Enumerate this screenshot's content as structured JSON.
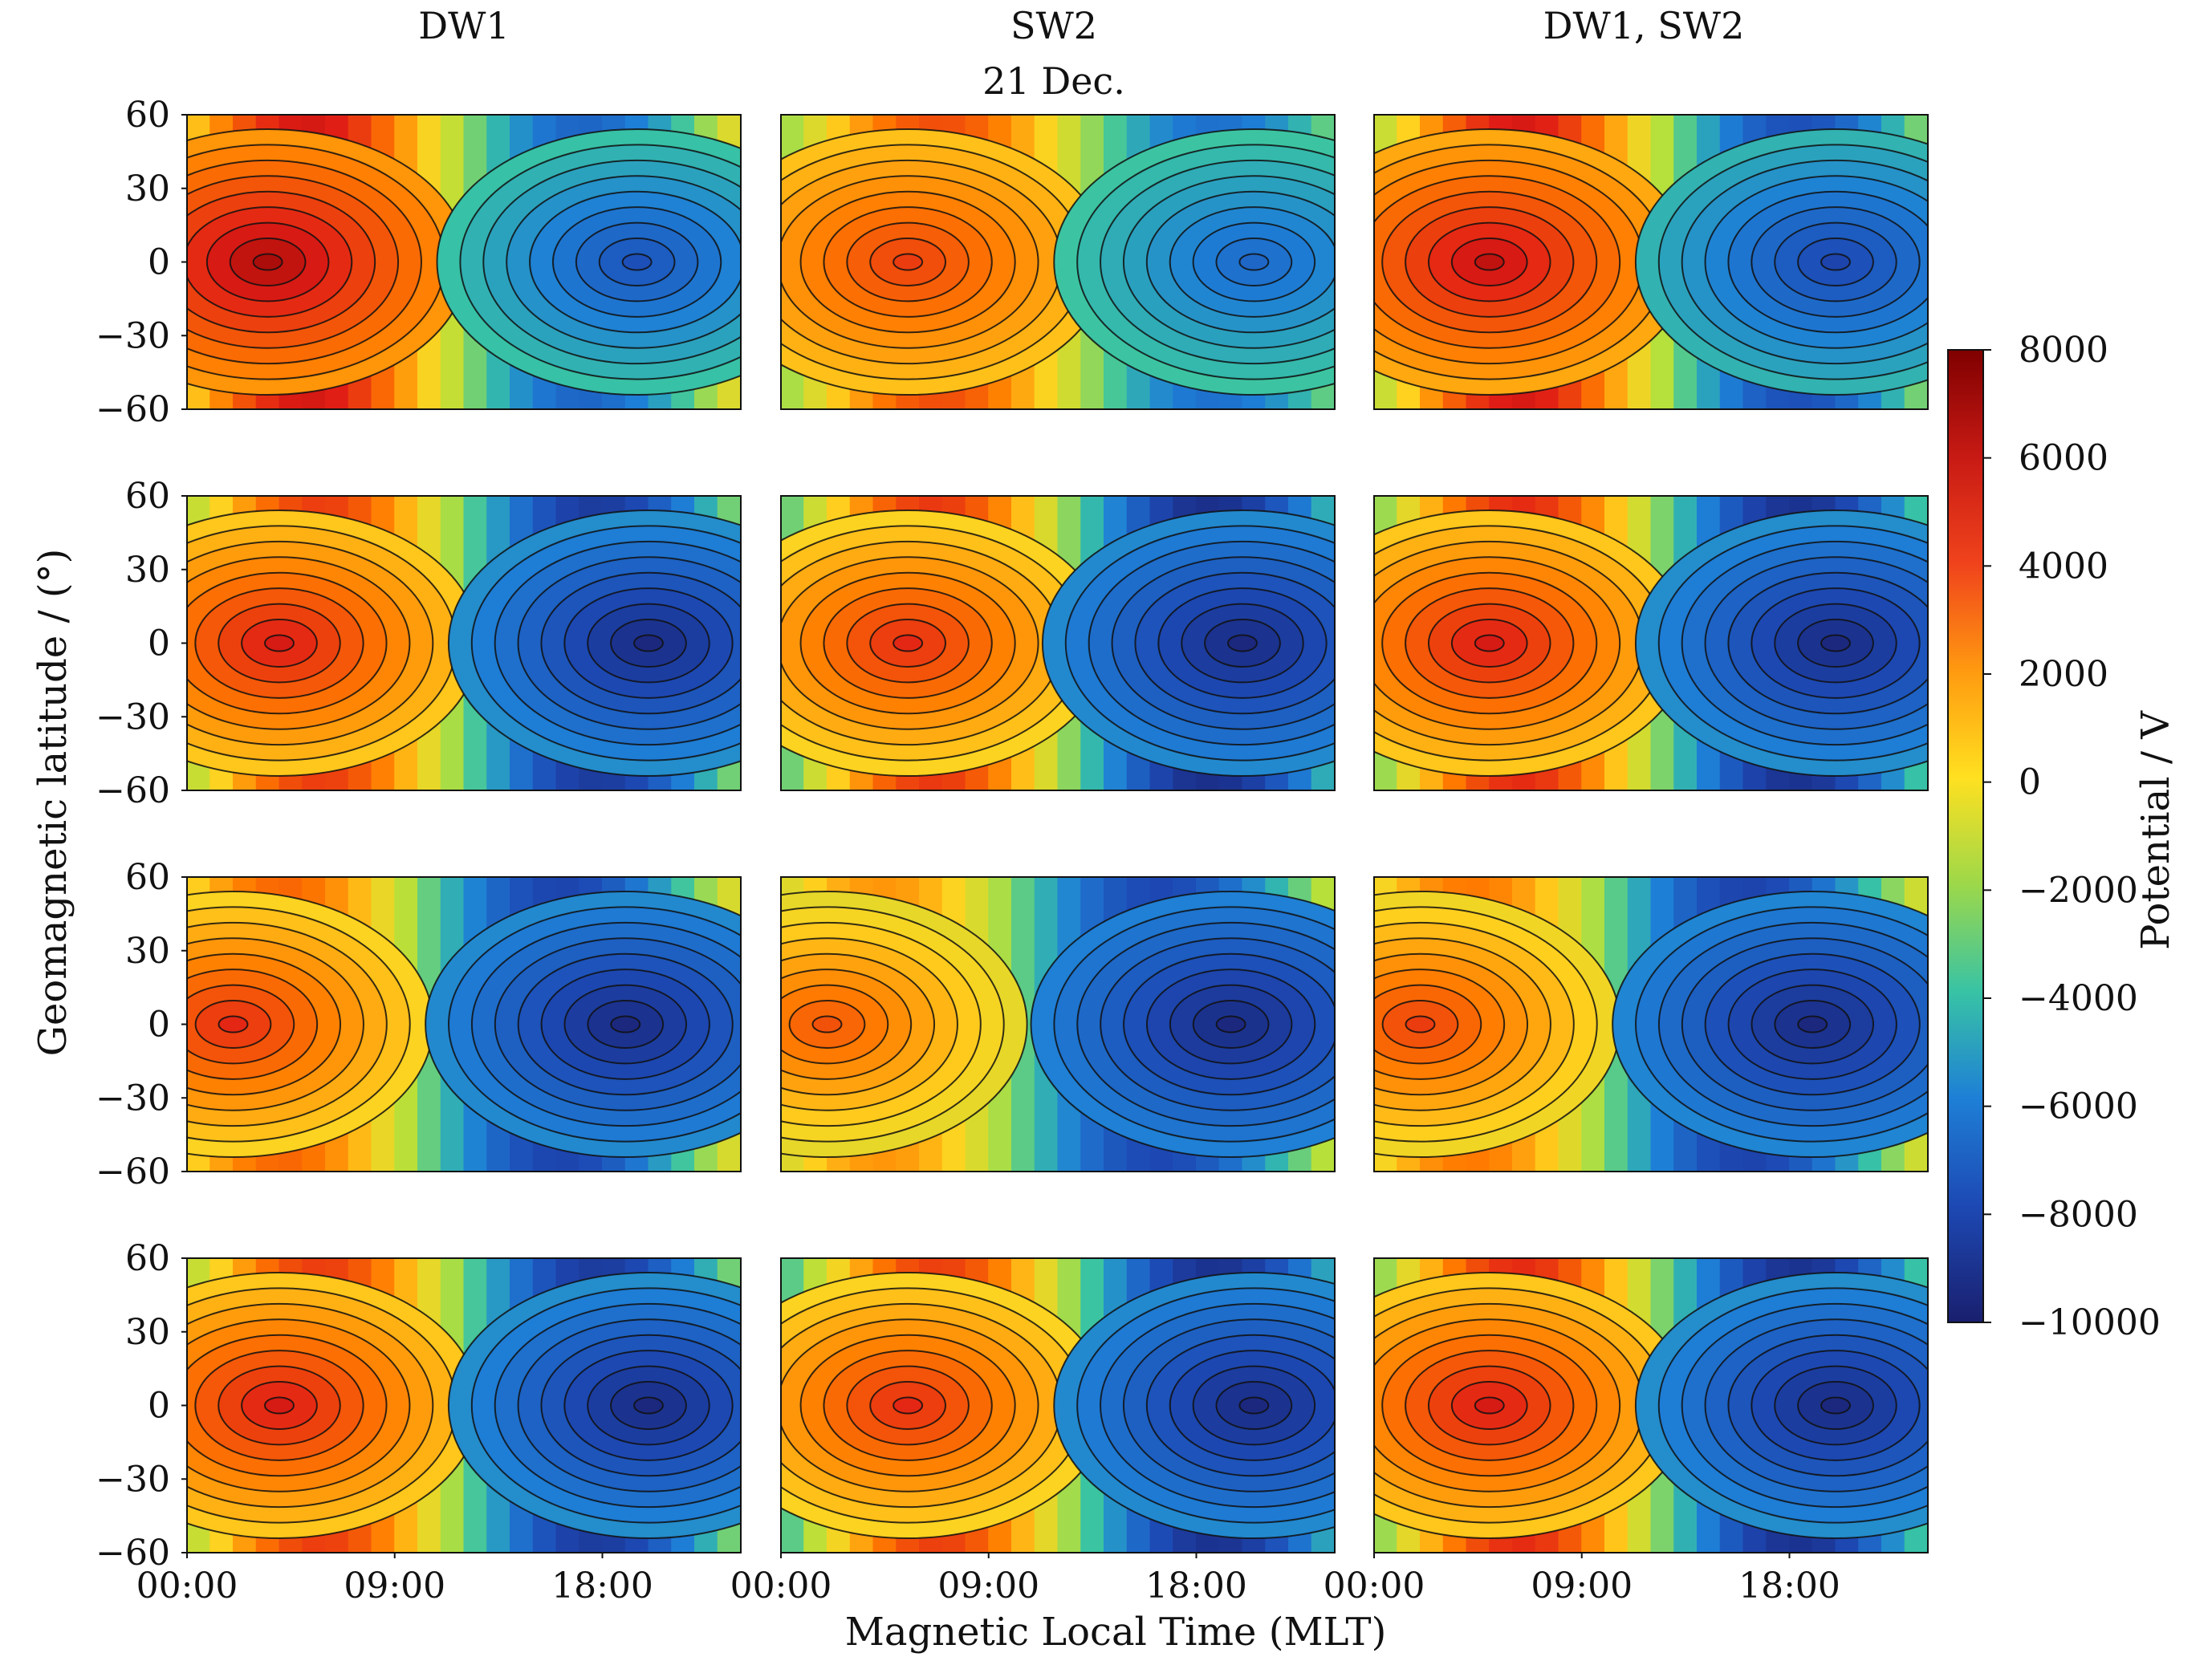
{
  "chart_data": {
    "type": "heatmap",
    "title": "21 Dec.",
    "xlabel": "Magnetic Local Time (MLT)",
    "ylabel": "Geomagnetic latitude / (°)",
    "columns": [
      "DW1",
      "SW2",
      "DW1, SW2"
    ],
    "rows": 4,
    "xlim": [
      0,
      24
    ],
    "x_ticks": [
      {
        "value": 0,
        "label": "00:00"
      },
      {
        "value": 9,
        "label": "09:00"
      },
      {
        "value": 18,
        "label": "18:00"
      }
    ],
    "ylim": [
      -60,
      60
    ],
    "y_ticks": [
      {
        "value": 60,
        "label": "60"
      },
      {
        "value": 30,
        "label": "30"
      },
      {
        "value": 0,
        "label": "0"
      },
      {
        "value": -30,
        "label": "−30"
      },
      {
        "value": -60,
        "label": "−60"
      }
    ],
    "colorbar": {
      "label": "Potential / V",
      "range": [
        -10000,
        8000
      ],
      "ticks": [
        {
          "value": 8000,
          "label": "8000"
        },
        {
          "value": 6000,
          "label": "6000"
        },
        {
          "value": 4000,
          "label": "4000"
        },
        {
          "value": 2000,
          "label": "2000"
        },
        {
          "value": 0,
          "label": "0"
        },
        {
          "value": -2000,
          "label": "−2000"
        },
        {
          "value": -4000,
          "label": "−4000"
        },
        {
          "value": -6000,
          "label": "−6000"
        },
        {
          "value": -8000,
          "label": "−8000"
        },
        {
          "value": -10000,
          "label": "−10000"
        }
      ],
      "colormap": [
        "#7f0000",
        "#e11d16",
        "#ff7a00",
        "#ffd21f",
        "#b8e03a",
        "#38c3a5",
        "#1e7fd6",
        "#1d49b4",
        "#1a1f6e"
      ]
    },
    "grid": false,
    "contour_color": "#111111",
    "panels": [
      {
        "row": 1,
        "col": "DW1",
        "max_mlt": 3.5,
        "min_mlt": 19.5,
        "max_value": 7000,
        "min_value": -7500
      },
      {
        "row": 1,
        "col": "SW2",
        "max_mlt": 5.5,
        "min_mlt": 20.5,
        "max_value": 5000,
        "min_value": -6500
      },
      {
        "row": 1,
        "col": "DW1, SW2",
        "max_mlt": 5.0,
        "min_mlt": 20.0,
        "max_value": 6500,
        "min_value": -8000
      },
      {
        "row": 2,
        "col": "DW1",
        "max_mlt": 4.0,
        "min_mlt": 20.0,
        "max_value": 6000,
        "min_value": -9500
      },
      {
        "row": 2,
        "col": "SW2",
        "max_mlt": 5.5,
        "min_mlt": 20.0,
        "max_value": 5500,
        "min_value": -9500
      },
      {
        "row": 2,
        "col": "DW1, SW2",
        "max_mlt": 5.0,
        "min_mlt": 20.0,
        "max_value": 6000,
        "min_value": -9500
      },
      {
        "row": 3,
        "col": "DW1",
        "max_mlt": 2.0,
        "min_mlt": 19.0,
        "max_value": 5500,
        "min_value": -9500
      },
      {
        "row": 3,
        "col": "SW2",
        "max_mlt": 2.0,
        "min_mlt": 19.5,
        "max_value": 4500,
        "min_value": -9500
      },
      {
        "row": 3,
        "col": "DW1, SW2",
        "max_mlt": 2.0,
        "min_mlt": 19.0,
        "max_value": 5000,
        "min_value": -9500
      },
      {
        "row": 4,
        "col": "DW1",
        "max_mlt": 4.0,
        "min_mlt": 20.0,
        "max_value": 6000,
        "min_value": -9500
      },
      {
        "row": 4,
        "col": "SW2",
        "max_mlt": 5.5,
        "min_mlt": 20.5,
        "max_value": 5500,
        "min_value": -9500
      },
      {
        "row": 4,
        "col": "DW1, SW2",
        "max_mlt": 5.0,
        "min_mlt": 20.0,
        "max_value": 6000,
        "min_value": -9500
      }
    ]
  }
}
